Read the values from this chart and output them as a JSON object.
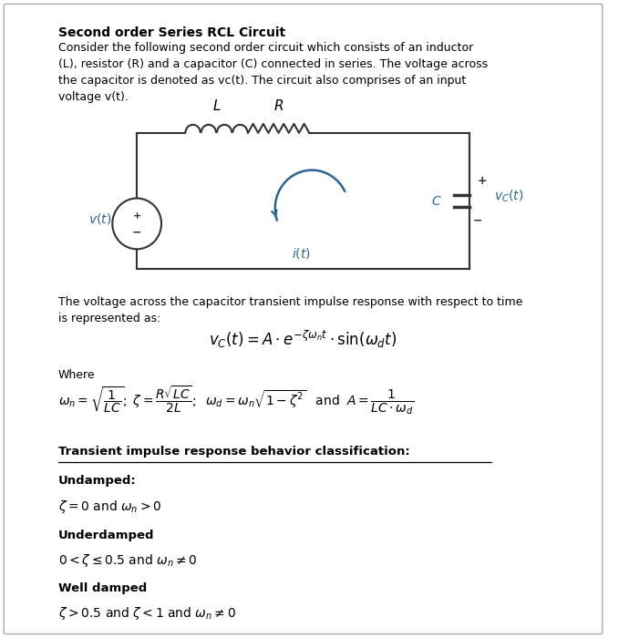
{
  "title": "Second order Series RCL Circuit",
  "bg_color": "#ffffff",
  "border_color": "#cccccc",
  "text_color": "#000000",
  "circuit_color": "#2a6496",
  "circuit_line_color": "#333333",
  "paragraph1": "Consider the following second order circuit which consists of an inductor\n(L), resistor (R) and a capacitor (C) connected in series. The voltage across\nthe capacitor is denoted as vc(t). The circuit also comprises of an input\nvoltage v(t).",
  "paragraph2": "The voltage across the capacitor transient impulse response with respect to time\nis represented as:",
  "where_label": "Where",
  "classification_title": "Transient impulse response behavior classification:",
  "undamped_title": "Undamped:",
  "undamped_cond": "zeta = 0 and wn > 0",
  "underdamped_title": "Underdamped",
  "underdamped_cond": "0 < zeta <= 0.5 and wn != 0",
  "welldamped_title": "Well damped",
  "welldamped_cond": "zeta > 0.5 and zeta < 1 and wn != 0"
}
